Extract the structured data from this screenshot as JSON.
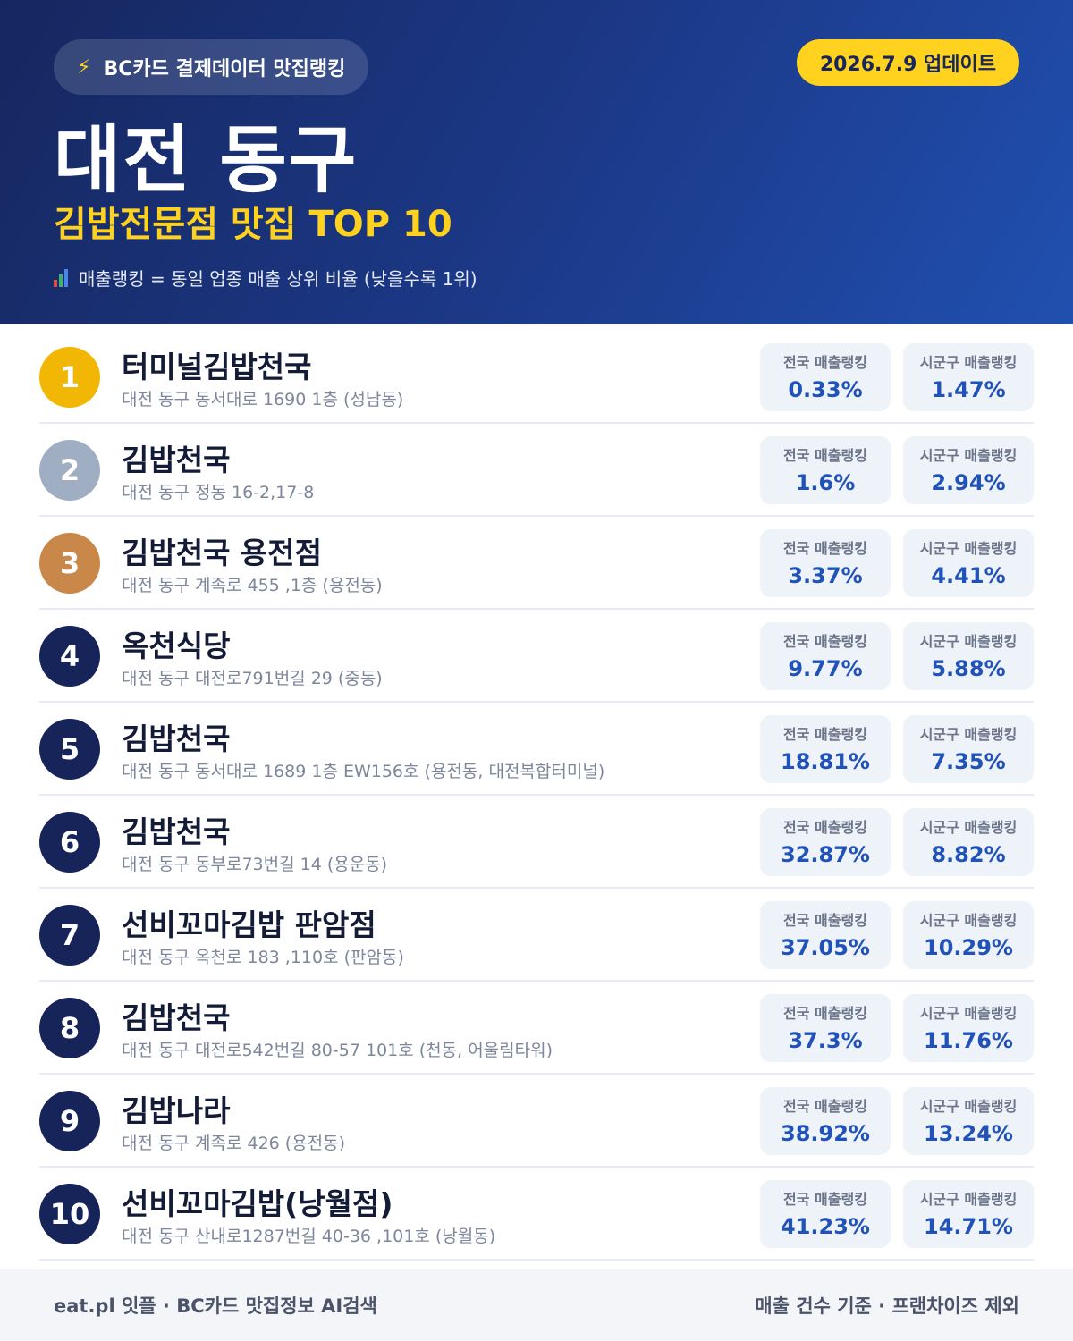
{
  "header": {
    "brand_badge": "BC카드 결제데이터 맛집랭킹",
    "update_badge": "2026.7.9 업데이트",
    "title": "대전 동구",
    "subtitle": "김밥전문점 맛집 TOP 10",
    "legend": "매출랭킹 = 동일 업종 매출 상위 비율 (낮을수록 1위)"
  },
  "labels": {
    "national": "전국 매출랭킹",
    "local": "시군구 매출랭킹"
  },
  "items": [
    {
      "rank": "1",
      "name": "터미널김밥천국",
      "address": "대전 동구 동서대로 1690 1층 (성남동)",
      "national": "0.33%",
      "local": "1.47%"
    },
    {
      "rank": "2",
      "name": "김밥천국",
      "address": "대전 동구 정동 16-2,17-8",
      "national": "1.6%",
      "local": "2.94%"
    },
    {
      "rank": "3",
      "name": "김밥천국 용전점",
      "address": "대전 동구 계족로 455 ,1층 (용전동)",
      "national": "3.37%",
      "local": "4.41%"
    },
    {
      "rank": "4",
      "name": "옥천식당",
      "address": "대전 동구 대전로791번길 29 (중동)",
      "national": "9.77%",
      "local": "5.88%"
    },
    {
      "rank": "5",
      "name": "김밥천국",
      "address": "대전 동구 동서대로 1689 1층 EW156호 (용전동, 대전복합터미널)",
      "national": "18.81%",
      "local": "7.35%"
    },
    {
      "rank": "6",
      "name": "김밥천국",
      "address": "대전 동구 동부로73번길 14 (용운동)",
      "national": "32.87%",
      "local": "8.82%"
    },
    {
      "rank": "7",
      "name": "선비꼬마김밥 판암점",
      "address": "대전 동구 옥천로 183 ,110호 (판암동)",
      "national": "37.05%",
      "local": "10.29%"
    },
    {
      "rank": "8",
      "name": "김밥천국",
      "address": "대전 동구 대전로542번길 80-57 101호 (천동, 어울림타워)",
      "national": "37.3%",
      "local": "11.76%"
    },
    {
      "rank": "9",
      "name": "김밥나라",
      "address": "대전 동구 계족로 426 (용전동)",
      "national": "38.92%",
      "local": "13.24%"
    },
    {
      "rank": "10",
      "name": "선비꼬마김밥(낭월점)",
      "address": "대전 동구 산내로1287번길 40-36 ,101호 (낭월동)",
      "national": "41.23%",
      "local": "14.71%"
    }
  ],
  "footer": {
    "left": "eat.pl 잇플 · BC카드 맛집정보 AI검색",
    "right": "매출 건수 기준 · 프랜차이즈 제외"
  }
}
